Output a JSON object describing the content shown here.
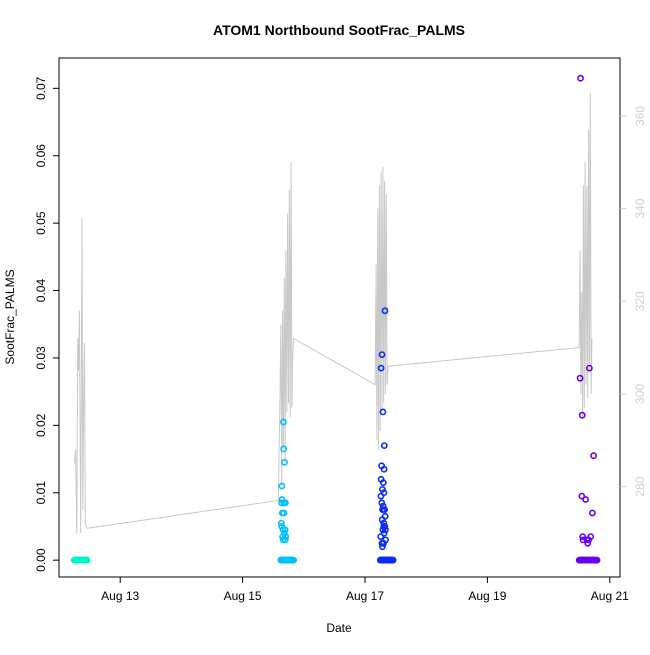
{
  "chart_data": {
    "type": "scatter",
    "title": "ATOM1 Northbound SootFrac_PALMS",
    "xlabel": "Date",
    "ylabel": "SootFrac_PALMS",
    "x_ticks": [
      "Aug 13",
      "Aug 15",
      "Aug 17",
      "Aug 19",
      "Aug 21"
    ],
    "y_ticks": [
      "0.00",
      "0.01",
      "0.02",
      "0.03",
      "0.04",
      "0.05",
      "0.06",
      "0.07"
    ],
    "y2_ticks": [
      "280",
      "300",
      "320",
      "340",
      "360"
    ],
    "xlim": [
      "2016-08-12 00:00",
      "2016-08-21 04:00"
    ],
    "ylim": [
      -0.0025,
      0.0745
    ],
    "y2lim": [
      260.5,
      372.5
    ],
    "grid": false,
    "marker_colors": [
      "#00f5c3",
      "#00bfff",
      "#0c2bf5",
      "#6a00f0"
    ],
    "secondary_line_color": "#c8c8c8",
    "axis_color": "#000000",
    "secondary_axis_color": "#cfcfcf",
    "series": [
      {
        "flight": 1,
        "color": "#00f5c3",
        "x_range": [
          "2016-08-12 06:00",
          "2016-08-12 11:00"
        ],
        "y_flat": 0.0,
        "points": []
      },
      {
        "flight": 2,
        "color": "#00bfff",
        "x_range": [
          "2016-08-15 15:00",
          "2016-08-15 20:00"
        ],
        "y_flat": 0.0,
        "points": [
          [
            "2016-08-15 15:10",
            0.0055
          ],
          [
            "2016-08-15 15:15",
            0.0085
          ],
          [
            "2016-08-15 15:20",
            0.005
          ],
          [
            "2016-08-15 15:25",
            0.011
          ],
          [
            "2016-08-15 15:30",
            0.009
          ],
          [
            "2016-08-15 15:35",
            0.007
          ],
          [
            "2016-08-15 15:40",
            0.0035
          ],
          [
            "2016-08-15 15:50",
            0.0045
          ],
          [
            "2016-08-15 15:55",
            0.003
          ],
          [
            "2016-08-15 16:00",
            0.0205
          ],
          [
            "2016-08-15 16:05",
            0.0165
          ],
          [
            "2016-08-15 16:10",
            0.0085
          ],
          [
            "2016-08-15 16:15",
            0.007
          ],
          [
            "2016-08-15 16:20",
            0.004
          ],
          [
            "2016-08-15 16:25",
            0.0145
          ],
          [
            "2016-08-15 16:30",
            0.0085
          ],
          [
            "2016-08-15 16:40",
            0.0045
          ],
          [
            "2016-08-15 16:45",
            0.003
          ],
          [
            "2016-08-15 16:50",
            0.0085
          ],
          [
            "2016-08-15 16:55",
            0.0035
          ]
        ]
      },
      {
        "flight": 3,
        "color": "#0c2bf5",
        "x_range": [
          "2016-08-17 06:00",
          "2016-08-17 11:00"
        ],
        "y_flat": 0.0,
        "points": [
          [
            "2016-08-17 06:20",
            0.0285
          ],
          [
            "2016-08-17 06:40",
            0.0305
          ],
          [
            "2016-08-17 06:10",
            0.0035
          ],
          [
            "2016-08-17 06:15",
            0.0095
          ],
          [
            "2016-08-17 06:20",
            0.012
          ],
          [
            "2016-08-17 06:30",
            0.014
          ],
          [
            "2016-08-17 06:35",
            0.0085
          ],
          [
            "2016-08-17 06:40",
            0.0025
          ],
          [
            "2016-08-17 06:45",
            0.006
          ],
          [
            "2016-08-17 06:50",
            0.0105
          ],
          [
            "2016-08-17 06:55",
            0.0075
          ],
          [
            "2016-08-17 07:00",
            0.0045
          ],
          [
            "2016-08-17 07:00",
            0.022
          ],
          [
            "2016-08-17 07:05",
            0.008
          ],
          [
            "2016-08-17 07:10",
            0.0115
          ],
          [
            "2016-08-17 07:15",
            0.0025
          ],
          [
            "2016-08-17 07:20",
            0.0055
          ],
          [
            "2016-08-17 07:25",
            0.01
          ],
          [
            "2016-08-17 07:30",
            0.0135
          ],
          [
            "2016-08-17 07:35",
            0.017
          ],
          [
            "2016-08-17 07:40",
            0.0075
          ],
          [
            "2016-08-17 07:45",
            0.005
          ],
          [
            "2016-08-17 07:50",
            0.037
          ],
          [
            "2016-08-17 07:55",
            0.0065
          ],
          [
            "2016-08-17 08:00",
            0.0045
          ],
          [
            "2016-08-17 08:05",
            0.003
          ],
          [
            "2016-08-17 07:10",
            0.0075
          ],
          [
            "2016-08-17 07:20",
            0.005
          ],
          [
            "2016-08-17 07:30",
            0.004
          ],
          [
            "2016-08-17 06:50",
            0.002
          ]
        ]
      },
      {
        "flight": 4,
        "color": "#6a00f0",
        "x_range": [
          "2016-08-20 12:00",
          "2016-08-20 19:00"
        ],
        "y_flat": 0.0,
        "points": [
          [
            "2016-08-20 12:30",
            0.0715
          ],
          [
            "2016-08-20 12:20",
            0.027
          ],
          [
            "2016-08-20 13:10",
            0.0215
          ],
          [
            "2016-08-20 13:00",
            0.0095
          ],
          [
            "2016-08-20 13:20",
            0.0035
          ],
          [
            "2016-08-20 13:30",
            0.003
          ],
          [
            "2016-08-20 14:30",
            0.009
          ],
          [
            "2016-08-20 15:00",
            0.003
          ],
          [
            "2016-08-20 15:20",
            0.0025
          ],
          [
            "2016-08-20 15:40",
            0.003
          ],
          [
            "2016-08-20 16:00",
            0.0285
          ],
          [
            "2016-08-20 16:30",
            0.0035
          ],
          [
            "2016-08-20 17:10",
            0.007
          ],
          [
            "2016-08-20 17:40",
            0.0155
          ]
        ]
      }
    ],
    "secondary_series": {
      "axis": "right",
      "color": "#c8c8c8",
      "points": [
        [
          "2016-08-12 06:00",
          285
        ],
        [
          "2016-08-12 06:30",
          288
        ],
        [
          "2016-08-12 07:00",
          270
        ],
        [
          "2016-08-12 07:20",
          312
        ],
        [
          "2016-08-12 07:40",
          305
        ],
        [
          "2016-08-12 08:00",
          318
        ],
        [
          "2016-08-12 08:30",
          270
        ],
        [
          "2016-08-12 09:00",
          338
        ],
        [
          "2016-08-12 09:20",
          275
        ],
        [
          "2016-08-12 09:40",
          300
        ],
        [
          "2016-08-12 10:00",
          311
        ],
        [
          "2016-08-12 10:20",
          272
        ],
        [
          "2016-08-12 11:00",
          271
        ],
        [
          "2016-08-15 14:00",
          277
        ],
        [
          "2016-08-15 14:40",
          300
        ],
        [
          "2016-08-15 15:00",
          315
        ],
        [
          "2016-08-15 15:20",
          280
        ],
        [
          "2016-08-15 15:40",
          318
        ],
        [
          "2016-08-15 16:00",
          288
        ],
        [
          "2016-08-15 16:20",
          325
        ],
        [
          "2016-08-15 16:40",
          285
        ],
        [
          "2016-08-15 17:00",
          331
        ],
        [
          "2016-08-15 17:20",
          296
        ],
        [
          "2016-08-15 17:40",
          339
        ],
        [
          "2016-08-15 18:00",
          298
        ],
        [
          "2016-08-15 18:20",
          344
        ],
        [
          "2016-08-15 18:40",
          295
        ],
        [
          "2016-08-15 19:00",
          350
        ],
        [
          "2016-08-15 19:20",
          297
        ],
        [
          "2016-08-15 19:40",
          309
        ],
        [
          "2016-08-15 20:00",
          312
        ],
        [
          "2016-08-17 04:00",
          302
        ],
        [
          "2016-08-17 04:20",
          328
        ],
        [
          "2016-08-17 04:40",
          290
        ],
        [
          "2016-08-17 05:00",
          340
        ],
        [
          "2016-08-17 05:20",
          288
        ],
        [
          "2016-08-17 05:40",
          345
        ],
        [
          "2016-08-17 06:00",
          292
        ],
        [
          "2016-08-17 06:20",
          348
        ],
        [
          "2016-08-17 06:40",
          296
        ],
        [
          "2016-08-17 07:00",
          349
        ],
        [
          "2016-08-17 07:20",
          298
        ],
        [
          "2016-08-17 07:40",
          346
        ],
        [
          "2016-08-17 08:00",
          300
        ],
        [
          "2016-08-17 08:20",
          343
        ],
        [
          "2016-08-17 08:40",
          302
        ],
        [
          "2016-08-17 09:00",
          306
        ],
        [
          "2016-08-20 12:00",
          310
        ],
        [
          "2016-08-20 12:20",
          331
        ],
        [
          "2016-08-20 12:40",
          300
        ],
        [
          "2016-08-20 13:00",
          322
        ],
        [
          "2016-08-20 13:20",
          295
        ],
        [
          "2016-08-20 13:40",
          345
        ],
        [
          "2016-08-20 14:00",
          297
        ],
        [
          "2016-08-20 14:20",
          350
        ],
        [
          "2016-08-20 14:40",
          302
        ],
        [
          "2016-08-20 15:00",
          345
        ],
        [
          "2016-08-20 15:20",
          299
        ],
        [
          "2016-08-20 15:40",
          357
        ],
        [
          "2016-08-20 16:00",
          305
        ],
        [
          "2016-08-20 16:20",
          365
        ],
        [
          "2016-08-20 16:40",
          300
        ],
        [
          "2016-08-20 17:00",
          312
        ]
      ]
    }
  }
}
